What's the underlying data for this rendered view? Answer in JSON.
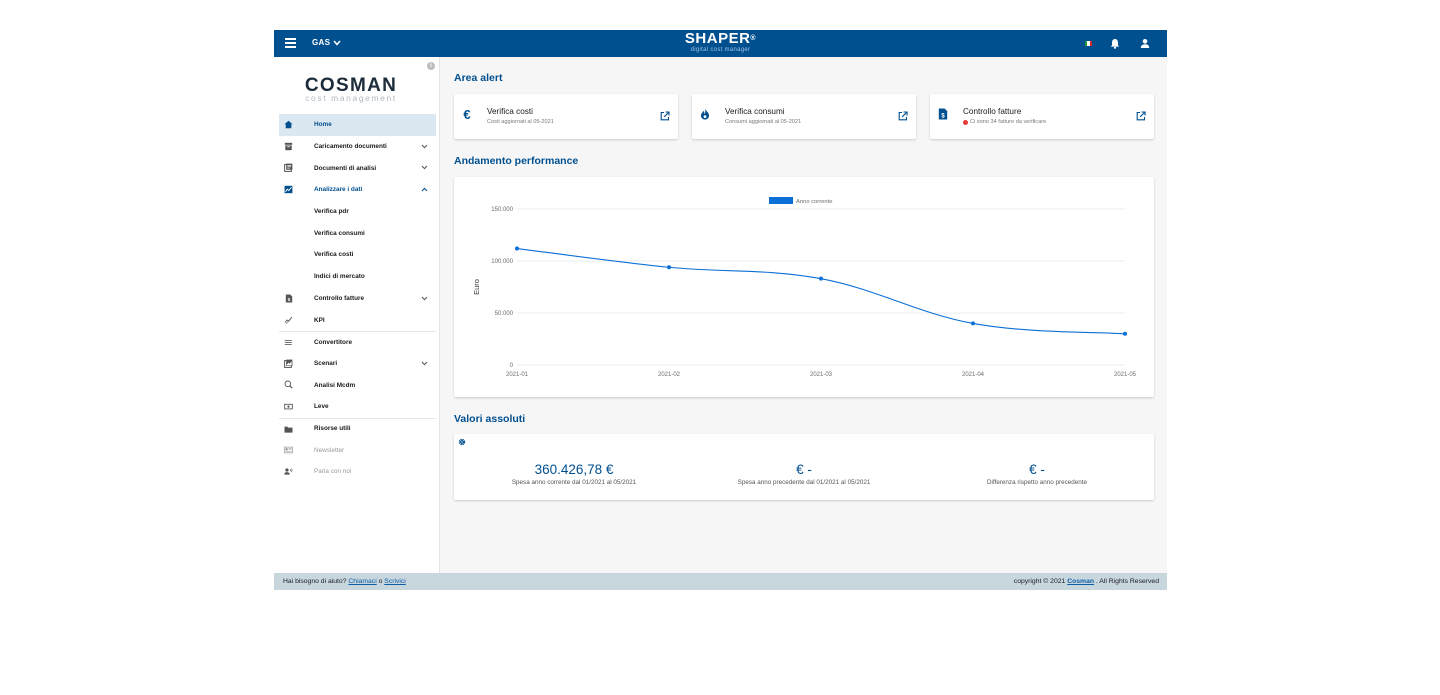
{
  "topbar": {
    "commodity": "GAS",
    "brand_name": "SHAPER",
    "brand_mark": "®",
    "brand_subtitle": "digital cost manager",
    "icons": [
      "menu-icon",
      "chevron-down-icon",
      "italian-flag-icon",
      "bell-icon",
      "user-icon"
    ]
  },
  "sidebar": {
    "logo_main": "COSMAN",
    "logo_sub": "cost management",
    "info_icon": "i",
    "items": [
      {
        "label": "Home",
        "icon": "home-icon",
        "active": true
      },
      {
        "label": "Caricamento documenti",
        "icon": "archive-icon",
        "chevron": "down"
      },
      {
        "label": "Documenti di analisi",
        "icon": "documents-icon",
        "chevron": "down"
      },
      {
        "label": "Analizzare i dati",
        "icon": "chart-icon",
        "chevron": "up",
        "open": true
      },
      {
        "label": "Verifica pdr",
        "sub": true
      },
      {
        "label": "Verifica consumi",
        "sub": true
      },
      {
        "label": "Verifica costi",
        "sub": true
      },
      {
        "label": "Indici di mercato",
        "sub": true
      },
      {
        "label": "Controllo fatture",
        "icon": "invoice-icon",
        "chevron": "down"
      },
      {
        "label": "KPI",
        "icon": "kpi-icon"
      },
      {
        "label": "Convertitore",
        "icon": "converter-icon"
      },
      {
        "label": "Scenari",
        "icon": "scenarios-icon",
        "chevron": "down"
      },
      {
        "label": "Analisi Mcdm",
        "icon": "analysis-icon"
      },
      {
        "label": "Leve",
        "icon": "lever-icon"
      },
      {
        "label": "Risorse utili",
        "icon": "folder-icon"
      },
      {
        "label": "Newsletter",
        "icon": "newsletter-icon",
        "muted": true
      },
      {
        "label": "Parla con noi",
        "icon": "contact-icon",
        "muted": true
      }
    ]
  },
  "main": {
    "alert_title": "Area alert",
    "alerts": [
      {
        "title": "Verifica costi",
        "subtitle": "Costi aggiornati al 05-2021",
        "icon": "euro-icon"
      },
      {
        "title": "Verifica consumi",
        "subtitle": "Consumi aggiornati al 05-2021",
        "icon": "flame-icon"
      },
      {
        "title": "Controllo fatture",
        "subtitle": "Ci sono 34 fatture da verificare",
        "icon": "invoice-dollar-icon",
        "dot_color": "#e53935"
      }
    ],
    "performance_title": "Andamento performance",
    "absolute_title": "Valori assoluti",
    "kpis": [
      {
        "value": "360.426,78 €",
        "label": "Spesa anno corrente dal 01/2021 al 05/2021"
      },
      {
        "value": "€ -",
        "label": "Spesa anno precedente dal 01/2021 al 05/2021"
      },
      {
        "value": "€ -",
        "label": "Differenza rispetto anno precedente"
      }
    ]
  },
  "chart_data": {
    "type": "line",
    "x": [
      "2021-01",
      "2021-02",
      "2021-03",
      "2021-04",
      "2021-05"
    ],
    "series": [
      {
        "name": "Anno corrente",
        "values": [
          112000,
          94000,
          83000,
          40000,
          30000
        ]
      }
    ],
    "ylabel": "Euro",
    "xlabel": "",
    "ylim": [
      0,
      150000
    ],
    "yticks": [
      0,
      50000,
      100000,
      150000
    ],
    "ytick_labels": [
      "0",
      "50.000",
      "100.000",
      "150.000"
    ],
    "grid": true,
    "legend": "top-center",
    "color": "#0a6fd6"
  },
  "footer": {
    "help_text": "Hai bisogno di aiuto?",
    "call_link": "Chiamaci",
    "or_text": "o",
    "write_link": "Scrivici",
    "copyright": "copyright © 2021",
    "company_link": "Cosman",
    "rights": ". All Rights Reserved"
  },
  "colors": {
    "primary": "#004f8f",
    "accent": "#0a6fd6",
    "footer": "#c8d6de",
    "alert_dot": "#e53935"
  }
}
